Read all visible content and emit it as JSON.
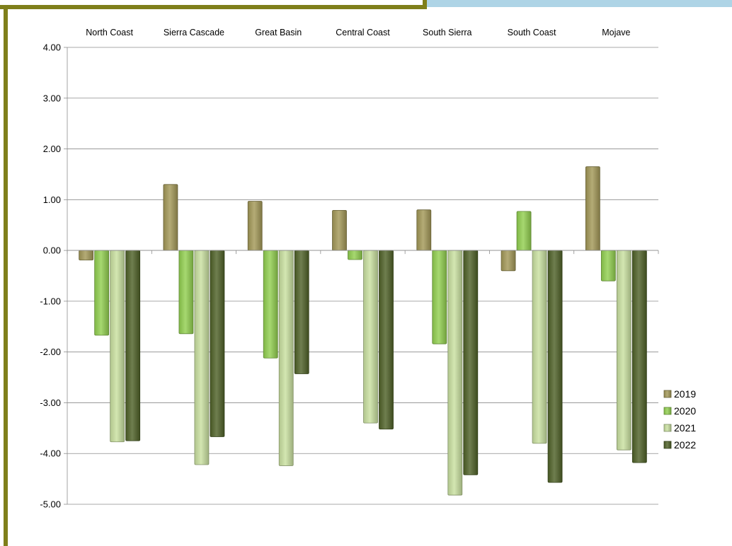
{
  "chart_data": {
    "type": "bar",
    "categories": [
      "North Coast",
      "Sierra Cascade",
      "Great Basin",
      "Central Coast",
      "South Sierra",
      "South Coast",
      "Mojave"
    ],
    "series": [
      {
        "name": "2019",
        "color": "#a39858",
        "values": [
          -0.19,
          1.3,
          0.97,
          0.79,
          0.8,
          -0.4,
          1.65
        ]
      },
      {
        "name": "2020",
        "color": "#92d050",
        "values": [
          -1.67,
          -1.64,
          -2.12,
          -0.18,
          -1.84,
          0.77,
          -0.6
        ]
      },
      {
        "name": "2021",
        "color": "#c9e0a0",
        "values": [
          -3.77,
          -4.22,
          -4.24,
          -3.4,
          -4.82,
          -3.8,
          -3.93
        ]
      },
      {
        "name": "2022",
        "color": "#4f6228",
        "values": [
          -3.75,
          -3.67,
          -2.43,
          -3.52,
          -4.42,
          -4.57,
          -4.18
        ]
      }
    ],
    "y_ticks": [
      "4.00",
      "3.00",
      "2.00",
      "1.00",
      "0.00",
      "-1.00",
      "-2.00",
      "-3.00",
      "-4.00",
      "-5.00"
    ],
    "ylim": [
      -5,
      4
    ],
    "grid": true,
    "category_labels_position": "top",
    "legend_position": "right"
  },
  "frame": {
    "border_color": "#7f7f1a",
    "accent_color": "#aed4e6"
  }
}
